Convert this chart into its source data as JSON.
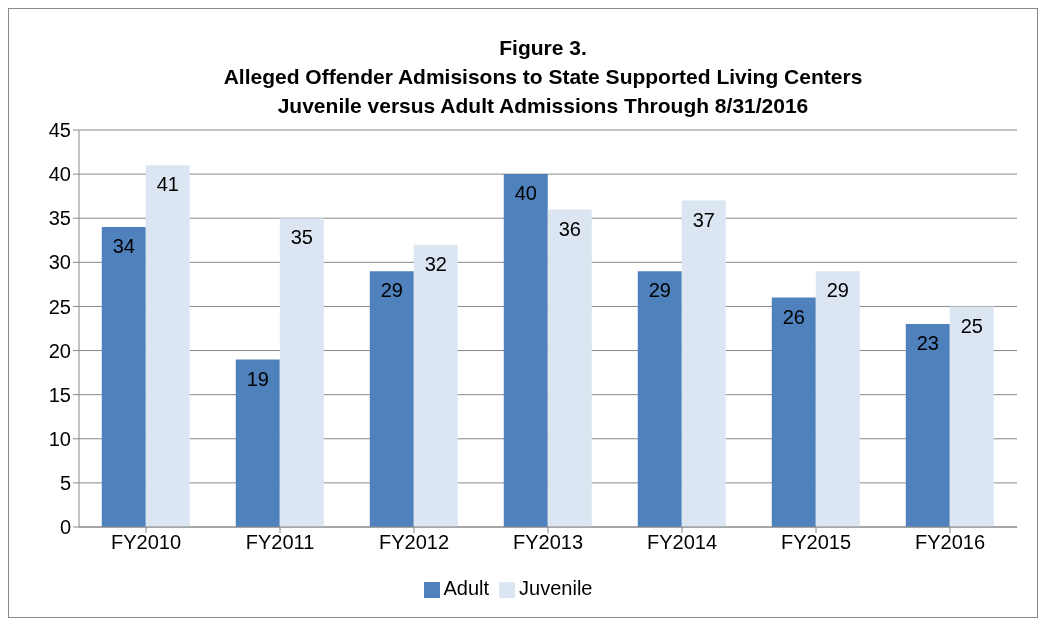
{
  "chart_data": {
    "type": "bar",
    "title": "Figure 3.\nAlleged Offender Admisisons to State Supported Living Centers\nJuvenile versus Adult Admissions Through 8/31/2016",
    "categories": [
      "FY2010",
      "FY2011",
      "FY2012",
      "FY2013",
      "FY2014",
      "FY2015",
      "FY2016"
    ],
    "series": [
      {
        "name": "Adult",
        "color": "#4f81bd",
        "values": [
          34,
          19,
          29,
          40,
          29,
          26,
          23
        ]
      },
      {
        "name": "Juvenile",
        "color": "#dce6f2",
        "values": [
          41,
          35,
          32,
          36,
          37,
          29,
          25
        ]
      }
    ],
    "ylim": [
      0,
      45
    ],
    "yticks": [
      0,
      5,
      10,
      15,
      20,
      25,
      30,
      35,
      40,
      45
    ],
    "grid": "y",
    "legend": "bottom",
    "data_labels": true
  }
}
